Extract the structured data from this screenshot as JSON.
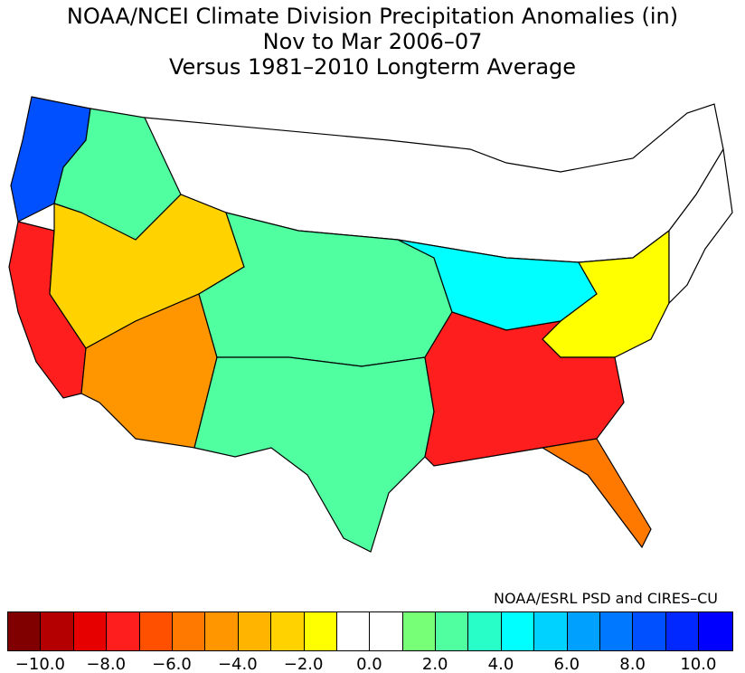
{
  "title": {
    "line1": "NOAA/NCEI Climate Division Precipitation Anomalies (in)",
    "line2": "Nov to Mar 2006–07",
    "line3": "Versus 1981–2010 Longterm Average"
  },
  "credit": "NOAA/ESRL PSD and CIRES–CU",
  "legend": {
    "colors": [
      "#800000",
      "#b40000",
      "#e60000",
      "#ff1e1e",
      "#ff5000",
      "#ff7800",
      "#ff9600",
      "#ffb400",
      "#ffd200",
      "#ffff00",
      "#ffffff",
      "#ffffff",
      "#78ff78",
      "#50ffa0",
      "#28ffc8",
      "#00ffff",
      "#00d2ff",
      "#00a0ff",
      "#0078ff",
      "#0050ff",
      "#0028ff",
      "#0000ff"
    ],
    "ticks": [
      "−10.0",
      "−8.0",
      "−6.0",
      "−4.0",
      "−2.0",
      "0.0",
      "2.0",
      "4.0",
      "6.0",
      "8.0",
      "10.0"
    ]
  },
  "regions": [
    {
      "name": "northwest-coast",
      "anomaly": 8.0
    },
    {
      "name": "northern-rockies",
      "anomaly": 2.0
    },
    {
      "name": "california",
      "anomaly": -8.0
    },
    {
      "name": "great-basin",
      "anomaly": -3.0
    },
    {
      "name": "arizona-newmexico",
      "anomaly": -5.0
    },
    {
      "name": "great-plains",
      "anomaly": 2.0
    },
    {
      "name": "texas",
      "anomaly": 2.5
    },
    {
      "name": "ohio-valley",
      "anomaly": 4.0
    },
    {
      "name": "southeast",
      "anomaly": -8.0
    },
    {
      "name": "florida",
      "anomaly": -5.5
    },
    {
      "name": "mid-atlantic",
      "anomaly": -2.0
    },
    {
      "name": "northeast",
      "anomaly": 0.5
    },
    {
      "name": "upper-midwest",
      "anomaly": 0.0
    }
  ]
}
